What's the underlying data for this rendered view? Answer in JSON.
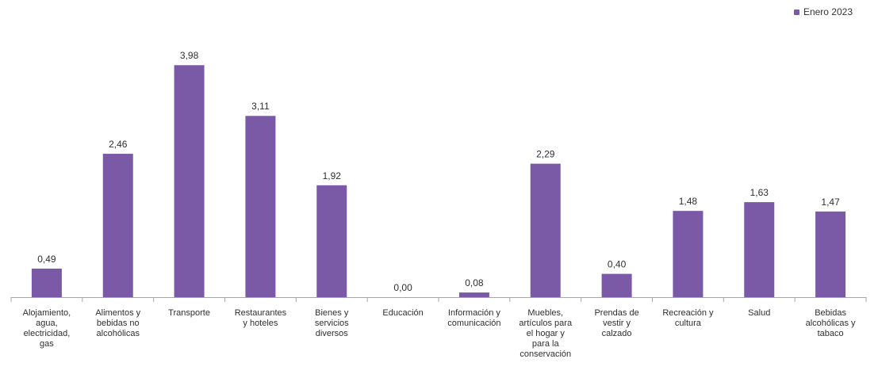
{
  "chart_data": {
    "type": "bar",
    "title": "",
    "xlabel": "",
    "ylabel": "",
    "categories": [
      [
        "Alojamiento,",
        "agua,",
        "electricidad,",
        "gas"
      ],
      [
        "Alimentos y",
        "bebidas no",
        "alcohólicas"
      ],
      [
        "Transporte"
      ],
      [
        "Restaurantes",
        "y hoteles"
      ],
      [
        "Bienes y",
        "servicios",
        "diversos"
      ],
      [
        "Educación"
      ],
      [
        "Información y",
        "comunicación"
      ],
      [
        "Muebles,",
        "artículos para",
        "el hogar y",
        "para la",
        "conservación"
      ],
      [
        "Prendas de",
        "vestir y",
        "calzado"
      ],
      [
        "Recreación y",
        "cultura"
      ],
      [
        "Salud"
      ],
      [
        "Bebidas",
        "alcohólicas y",
        "tabaco"
      ]
    ],
    "series": [
      {
        "name": "Enero 2023",
        "values": [
          0.49,
          2.46,
          3.98,
          3.11,
          1.92,
          0.0,
          0.08,
          2.29,
          0.4,
          1.48,
          1.63,
          1.47
        ],
        "labels": [
          "0,49",
          "2,46",
          "3,98",
          "3,11",
          "1,92",
          "0,00",
          "0,08",
          "2,29",
          "0,40",
          "1,48",
          "1,63",
          "1,47"
        ]
      }
    ],
    "ylim": [
      0,
      4.5
    ],
    "grid": false,
    "legend_position": "top-right",
    "colors": {
      "bar": "#7a5aa6",
      "axis": "#a6a6a6",
      "label": "#2f2f2f"
    }
  }
}
